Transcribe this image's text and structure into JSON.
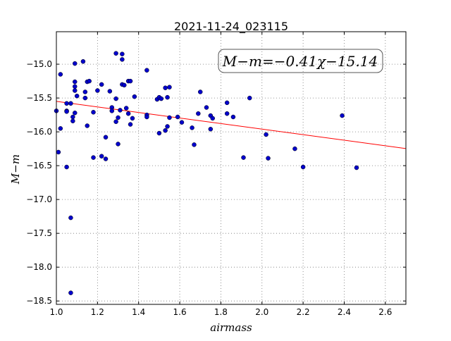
{
  "chart_data": {
    "type": "scatter",
    "title": "2021-11-24_023115",
    "x_label": "airmass",
    "y_label": "M−m",
    "annotation": "M−m=−0.41χ−15.14",
    "grid": true,
    "xlim": [
      1.0,
      2.7
    ],
    "ylim": [
      -18.55,
      -14.52
    ],
    "xticks": [
      {
        "value": 1.0,
        "label": "1.0"
      },
      {
        "value": 1.2,
        "label": "1.2"
      },
      {
        "value": 1.4,
        "label": "1.4"
      },
      {
        "value": 1.6,
        "label": "1.6"
      },
      {
        "value": 1.8,
        "label": "1.8"
      },
      {
        "value": 2.0,
        "label": "2.0"
      },
      {
        "value": 2.2,
        "label": "2.2"
      },
      {
        "value": 2.4,
        "label": "2.4"
      },
      {
        "value": 2.6,
        "label": "2.6"
      }
    ],
    "yticks": [
      {
        "value": -15.0,
        "label": "−15.0"
      },
      {
        "value": -15.5,
        "label": "−15.5"
      },
      {
        "value": -16.0,
        "label": "−16.0"
      },
      {
        "value": -16.5,
        "label": "−16.5"
      },
      {
        "value": -17.0,
        "label": "−17.0"
      },
      {
        "value": -17.5,
        "label": "−17.5"
      },
      {
        "value": -18.0,
        "label": "−18.0"
      },
      {
        "value": -18.5,
        "label": "−18.5"
      }
    ],
    "series": [
      {
        "color": "#0000cc",
        "x": [
          1.02,
          1.0,
          1.01,
          1.02,
          1.05,
          1.05,
          1.05,
          1.05,
          1.07,
          1.08,
          1.08,
          1.07,
          1.07,
          1.09,
          1.09,
          1.09,
          1.09,
          1.1,
          1.09,
          1.13,
          1.14,
          1.14,
          1.15,
          1.16,
          1.15,
          1.18,
          1.18,
          1.2,
          1.22,
          1.22,
          1.24,
          1.24,
          1.26,
          1.27,
          1.27,
          1.29,
          1.29,
          1.3,
          1.29,
          1.3,
          1.31,
          1.32,
          1.32,
          1.32,
          1.33,
          1.34,
          1.35,
          1.35,
          1.36,
          1.36,
          1.37,
          1.38,
          1.44,
          1.44,
          1.44,
          1.49,
          1.5,
          1.51,
          1.5,
          1.53,
          1.53,
          1.54,
          1.54,
          1.55,
          1.55,
          1.59,
          1.61,
          1.66,
          1.67,
          1.69,
          1.7,
          1.73,
          1.75,
          1.76,
          1.75,
          1.83,
          1.83,
          1.86,
          1.91,
          1.94,
          2.02,
          2.03,
          2.16,
          2.2,
          2.39,
          2.46
        ],
        "values": [
          -15.15,
          -15.69,
          -16.3,
          -15.95,
          -15.58,
          -15.69,
          -15.7,
          -16.52,
          -15.58,
          -15.78,
          -15.84,
          -17.27,
          -18.38,
          -14.99,
          -15.26,
          -15.33,
          -15.39,
          -15.47,
          -15.72,
          -14.96,
          -15.5,
          -15.41,
          -15.26,
          -15.25,
          -15.91,
          -15.71,
          -16.38,
          -15.39,
          -16.36,
          -15.3,
          -16.08,
          -16.4,
          -15.4,
          -15.64,
          -15.69,
          -14.84,
          -15.51,
          -15.79,
          -15.85,
          -16.18,
          -15.68,
          -14.85,
          -14.93,
          -15.3,
          -15.31,
          -15.65,
          -15.73,
          -15.25,
          -15.25,
          -15.89,
          -15.8,
          -15.48,
          -15.75,
          -15.09,
          -15.78,
          -15.52,
          -15.49,
          -15.51,
          -16.02,
          -15.98,
          -15.35,
          -15.49,
          -15.92,
          -15.34,
          -15.79,
          -15.78,
          -15.86,
          -15.94,
          -16.19,
          -15.73,
          -15.41,
          -15.64,
          -15.76,
          -15.8,
          -15.96,
          -15.57,
          -15.73,
          -15.78,
          -16.38,
          -15.5,
          -16.04,
          -16.39,
          -16.25,
          -16.52,
          -15.76,
          -16.53
        ]
      }
    ],
    "fit": {
      "color": "#ff0000",
      "x": [
        1.0,
        2.7
      ],
      "values": [
        -15.55,
        -16.247
      ]
    }
  }
}
